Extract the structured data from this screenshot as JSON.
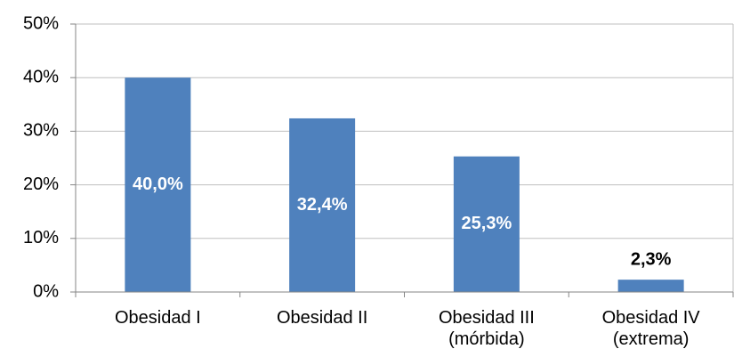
{
  "chart_data": {
    "type": "bar",
    "categories": [
      "Obesidad I",
      "Obesidad II",
      "Obesidad III (mórbida)",
      "Obesidad IV (extrema)"
    ],
    "values": [
      40.0,
      32.4,
      25.3,
      2.3
    ],
    "value_labels": [
      "40,0%",
      "32,4%",
      "25,3%",
      "2,3%"
    ],
    "color": "#4f81bd",
    "ylim": [
      0,
      50
    ],
    "yticks": [
      {
        "value": 0,
        "label": "0%"
      },
      {
        "value": 10,
        "label": "10%"
      },
      {
        "value": 20,
        "label": "20%"
      },
      {
        "value": 30,
        "label": "30%"
      },
      {
        "value": 40,
        "label": "40%"
      },
      {
        "value": 50,
        "label": "50%"
      }
    ],
    "grid": true
  }
}
